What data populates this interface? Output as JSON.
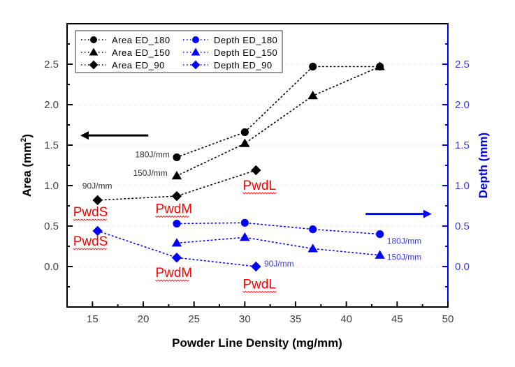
{
  "chart_data": {
    "type": "scatter",
    "title": "",
    "xlabel": "Powder Line Density (mg/mm)",
    "ylabel": "Area (mm",
    "ylabel_superscript": "2",
    "ylabel_suffix": ")",
    "y2label": "Depth (mm)",
    "xlim": [
      12.5,
      50
    ],
    "ylim": [
      -0.5,
      3.0
    ],
    "y2lim": [
      -0.5,
      3.0
    ],
    "x_ticks": [
      15,
      20,
      25,
      30,
      35,
      40,
      45,
      50
    ],
    "y_ticks": [
      0.0,
      0.5,
      1.0,
      1.5,
      2.0,
      2.5
    ],
    "y_tick_labels": [
      "0.0",
      "0.5",
      "1.0",
      "1.5",
      "2.0",
      "2.5"
    ],
    "y2_ticks": [
      0.0,
      0.5,
      1.0,
      1.5,
      2.0,
      2.5
    ],
    "y2_tick_labels": [
      "0.0",
      "0.5",
      "1.0",
      "1.5",
      "2.0",
      "2.5"
    ],
    "grid": "horizontal dotted",
    "legend_position": "top-left",
    "colors": {
      "area": "#000000",
      "depth": "#0000ff",
      "axis_right": "#0000ff",
      "annotation_red": "#ff0000"
    },
    "series": [
      {
        "name": "Area ED_180",
        "axis": "left",
        "marker": "circle",
        "color": "#000000",
        "x": [
          23.3,
          30.0,
          36.7,
          43.3
        ],
        "values": [
          1.35,
          1.66,
          2.47,
          2.47
        ]
      },
      {
        "name": "Area ED_150",
        "axis": "left",
        "marker": "triangle",
        "color": "#000000",
        "x": [
          23.3,
          30.0,
          36.7,
          43.3
        ],
        "values": [
          1.12,
          1.52,
          2.11,
          2.47
        ]
      },
      {
        "name": "Area ED_90",
        "axis": "left",
        "marker": "diamond",
        "color": "#000000",
        "x": [
          15.5,
          23.3,
          31.1
        ],
        "values": [
          0.82,
          0.87,
          1.19
        ]
      },
      {
        "name": "Depth ED_180",
        "axis": "right",
        "marker": "circle",
        "color": "#0000ff",
        "x": [
          23.3,
          30.0,
          36.7,
          43.3
        ],
        "values": [
          0.53,
          0.54,
          0.46,
          0.4
        ]
      },
      {
        "name": "Depth ED_150",
        "axis": "right",
        "marker": "triangle",
        "color": "#0000ff",
        "x": [
          23.3,
          30.0,
          36.7,
          43.3
        ],
        "values": [
          0.29,
          0.36,
          0.22,
          0.14
        ]
      },
      {
        "name": "Depth ED_90",
        "axis": "right",
        "marker": "diamond",
        "color": "#0000ff",
        "x": [
          15.5,
          23.3,
          31.1
        ],
        "values": [
          0.44,
          0.11,
          0.0
        ]
      }
    ],
    "annotations": [
      {
        "text": "180J/mm",
        "style": "black",
        "x": 19.2,
        "y": 1.35
      },
      {
        "text": "150J/mm",
        "style": "black",
        "x": 19.0,
        "y": 1.12
      },
      {
        "text": "90J/mm",
        "style": "black",
        "x": 14.0,
        "y": 0.96
      },
      {
        "text": "PwdS",
        "style": "red",
        "x": 13.1,
        "y": 0.62
      },
      {
        "text": "PwdM",
        "style": "red",
        "x": 21.2,
        "y": 0.66
      },
      {
        "text": "PwdL",
        "style": "red",
        "x": 29.8,
        "y": 0.95
      },
      {
        "text": "PwdS",
        "style": "red",
        "x": 13.1,
        "y": 0.26
      },
      {
        "text": "PwdM",
        "style": "red",
        "x": 21.2,
        "y": -0.13
      },
      {
        "text": "PwdL",
        "style": "red",
        "x": 29.8,
        "y": -0.27
      },
      {
        "text": "90J/mm",
        "style": "blue",
        "x": 31.9,
        "y": 0.0
      },
      {
        "text": "180J/mm",
        "style": "blue",
        "x": 44.0,
        "y": 0.28
      },
      {
        "text": "150J/mm",
        "style": "blue",
        "x": 44.0,
        "y": 0.08
      }
    ],
    "arrows": [
      {
        "direction": "left",
        "color": "#000000",
        "x_from": 20.5,
        "x_to": 13.8,
        "y": 1.62,
        "meaning": "left axis (Area)"
      },
      {
        "direction": "right",
        "color": "#0000ff",
        "x_from": 41.9,
        "x_to": 48.4,
        "y": 0.65,
        "meaning": "right axis (Depth)"
      }
    ]
  }
}
